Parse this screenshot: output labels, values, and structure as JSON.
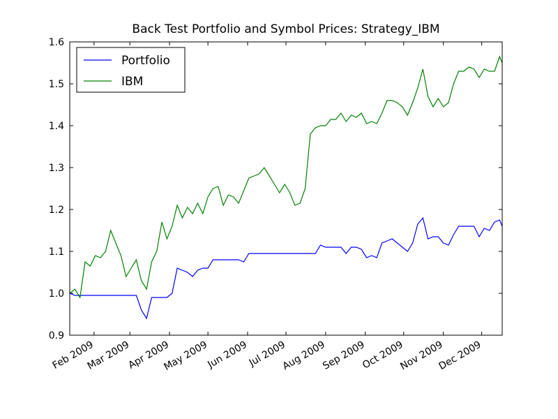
{
  "chart_data": {
    "type": "line",
    "title": "Back Test Portfolio and Symbol Prices: Strategy_IBM",
    "x": [
      12,
      16,
      20,
      24,
      28,
      32,
      36,
      40,
      44,
      48,
      52,
      56,
      60,
      64,
      68,
      72,
      76,
      80,
      84,
      88,
      92,
      96,
      100,
      104,
      108,
      112,
      116,
      120,
      124,
      128,
      132,
      136,
      140,
      144,
      148,
      152,
      156,
      160,
      164,
      168,
      172,
      176,
      180,
      184,
      188,
      192,
      196,
      200,
      204,
      208,
      212,
      216,
      220,
      224,
      228,
      232,
      236,
      240,
      244,
      248,
      252,
      256,
      260,
      264,
      268,
      272,
      276,
      280,
      284,
      288,
      292,
      296,
      300,
      304,
      308,
      312,
      316,
      320,
      324,
      328,
      332,
      336,
      340,
      344,
      348,
      350
    ],
    "series": [
      {
        "name": "Portfolio",
        "color": "#0000ff",
        "values": [
          1.0,
          0.995,
          0.995,
          0.995,
          0.995,
          0.995,
          0.995,
          0.995,
          0.995,
          0.995,
          0.995,
          0.995,
          0.995,
          0.995,
          0.96,
          0.94,
          0.99,
          0.99,
          0.99,
          0.99,
          1.0,
          1.06,
          1.055,
          1.05,
          1.04,
          1.055,
          1.06,
          1.06,
          1.08,
          1.08,
          1.08,
          1.08,
          1.08,
          1.08,
          1.075,
          1.095,
          1.095,
          1.095,
          1.095,
          1.095,
          1.095,
          1.095,
          1.095,
          1.095,
          1.095,
          1.095,
          1.095,
          1.095,
          1.095,
          1.115,
          1.11,
          1.11,
          1.11,
          1.11,
          1.095,
          1.11,
          1.11,
          1.105,
          1.085,
          1.09,
          1.085,
          1.12,
          1.125,
          1.13,
          1.12,
          1.11,
          1.1,
          1.12,
          1.165,
          1.18,
          1.13,
          1.135,
          1.135,
          1.12,
          1.115,
          1.14,
          1.16,
          1.16,
          1.16,
          1.16,
          1.135,
          1.155,
          1.15,
          1.17,
          1.175,
          1.16
        ]
      },
      {
        "name": "IBM",
        "color": "#008000",
        "values": [
          1.0,
          1.01,
          0.99,
          1.075,
          1.065,
          1.09,
          1.085,
          1.1,
          1.15,
          1.12,
          1.09,
          1.04,
          1.06,
          1.08,
          1.03,
          1.01,
          1.075,
          1.1,
          1.17,
          1.13,
          1.16,
          1.21,
          1.18,
          1.205,
          1.19,
          1.215,
          1.19,
          1.23,
          1.25,
          1.255,
          1.21,
          1.235,
          1.23,
          1.215,
          1.245,
          1.275,
          1.28,
          1.285,
          1.3,
          1.28,
          1.26,
          1.24,
          1.26,
          1.24,
          1.21,
          1.215,
          1.25,
          1.38,
          1.395,
          1.4,
          1.4,
          1.415,
          1.415,
          1.43,
          1.41,
          1.425,
          1.42,
          1.43,
          1.405,
          1.41,
          1.405,
          1.43,
          1.46,
          1.46,
          1.455,
          1.445,
          1.425,
          1.455,
          1.49,
          1.535,
          1.47,
          1.445,
          1.465,
          1.445,
          1.455,
          1.5,
          1.53,
          1.53,
          1.54,
          1.535,
          1.515,
          1.535,
          1.53,
          1.53,
          1.565,
          1.55
        ]
      }
    ],
    "xlim": [
      12,
      350
    ],
    "xticks": [
      {
        "value": 31,
        "label": "Feb 2009"
      },
      {
        "value": 59,
        "label": "Mar 2009"
      },
      {
        "value": 90,
        "label": "Apr 2009"
      },
      {
        "value": 120,
        "label": "May 2009"
      },
      {
        "value": 151,
        "label": "Jun 2009"
      },
      {
        "value": 181,
        "label": "Jul 2009"
      },
      {
        "value": 212,
        "label": "Aug 2009"
      },
      {
        "value": 243,
        "label": "Sep 2009"
      },
      {
        "value": 273,
        "label": "Oct 2009"
      },
      {
        "value": 304,
        "label": "Nov 2009"
      },
      {
        "value": 334,
        "label": "Dec 2009"
      }
    ],
    "ylim": [
      0.9,
      1.6
    ],
    "yticks": [
      0.9,
      {
        "value": 1,
        "label": "1.0"
      },
      1.1,
      1.2,
      1.3,
      1.4,
      1.5,
      1.6
    ],
    "legend": "upper left",
    "grid": false
  }
}
